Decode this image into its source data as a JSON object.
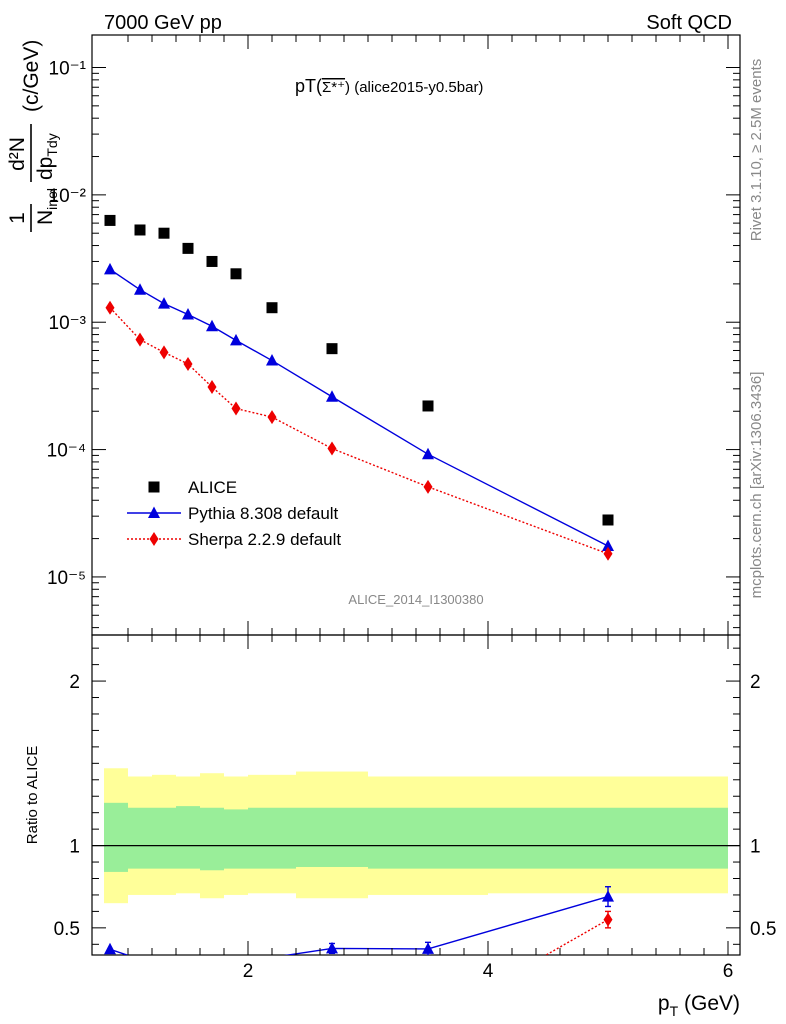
{
  "header": {
    "left": "7000 GeV pp",
    "right": "Soft QCD"
  },
  "side_labels": {
    "rivet": "Rivet 3.1.10, ≥ 2.5M events",
    "mcplots": "mcplots.cern.ch [arXiv:1306.3436]"
  },
  "watermark": "ALICE_2014_I1300380",
  "chart_data": [
    {
      "type": "scatter",
      "panel": "main",
      "title_main": "pT(",
      "title_particle": "Σ*⁺",
      "title_rest": ") (alice2015-y0.5bar)",
      "ylabel": {
        "frac1_num": "1",
        "frac1_den": "N",
        "frac1_den_sub": "inel",
        "frac2_num": "d²N",
        "frac2_den": "dp",
        "frac2_den_sub": "Tdy",
        "unit": "(c/GeV)"
      },
      "yscale": "log",
      "ylim": [
        3.5e-06,
        0.18
      ],
      "xlim": [
        0.7,
        6.1
      ],
      "ytick_labels": [
        "10⁻⁵",
        "10⁻⁴",
        "10⁻³",
        "10⁻²",
        "10⁻¹"
      ],
      "legend_position": "middle-left",
      "series": [
        {
          "name": "ALICE",
          "color": "#000000",
          "marker": "square",
          "line": "none",
          "x": [
            0.85,
            1.1,
            1.3,
            1.5,
            1.7,
            1.9,
            2.2,
            2.7,
            3.5,
            5.0
          ],
          "y": [
            0.0063,
            0.0053,
            0.005,
            0.0038,
            0.003,
            0.0024,
            0.0013,
            0.00062,
            0.00022,
            2.8e-05
          ]
        },
        {
          "name": "Pythia 8.308 default",
          "color": "#0000dd",
          "marker": "triangle",
          "line": "solid",
          "x": [
            0.85,
            1.1,
            1.3,
            1.5,
            1.7,
            1.9,
            2.2,
            2.7,
            3.5,
            5.0
          ],
          "y": [
            0.0026,
            0.0018,
            0.0014,
            0.00115,
            0.00093,
            0.00072,
            0.0005,
            0.00026,
            9.2e-05,
            1.75e-05
          ]
        },
        {
          "name": "Sherpa 2.2.9 default",
          "color": "#ee0000",
          "marker": "diamond",
          "line": "dotted",
          "x": [
            0.85,
            1.1,
            1.3,
            1.5,
            1.7,
            1.9,
            2.2,
            2.7,
            3.5,
            5.0
          ],
          "y": [
            0.0013,
            0.00073,
            0.00058,
            0.00047,
            0.00031,
            0.00021,
            0.00018,
            0.000102,
            5.1e-05,
            1.52e-05
          ]
        }
      ]
    },
    {
      "type": "line",
      "panel": "ratio",
      "ylabel": "Ratio to ALICE",
      "xlabel": "p",
      "xlabel_sub": "T",
      "xlabel_unit": " (GeV)",
      "xlim": [
        0.7,
        6.1
      ],
      "ylim": [
        0.335,
        2.28
      ],
      "xtick_labels": [
        "2",
        "4",
        "6"
      ],
      "ytick_labels": [
        "0.5",
        "1",
        "2"
      ],
      "reference": 1.0,
      "bands": {
        "bin_edges": [
          0.7,
          1.0,
          1.2,
          1.4,
          1.6,
          1.8,
          2.0,
          2.4,
          3.0,
          4.0,
          6.0
        ],
        "stat_color": "#99ee99",
        "total_color": "#ffff99",
        "stat_low": [
          0.84,
          0.86,
          0.86,
          0.86,
          0.85,
          0.86,
          0.86,
          0.87,
          0.86,
          0.86
        ],
        "stat_high": [
          1.26,
          1.23,
          1.23,
          1.24,
          1.23,
          1.22,
          1.23,
          1.23,
          1.23,
          1.23
        ],
        "total_low": [
          0.65,
          0.7,
          0.7,
          0.71,
          0.68,
          0.7,
          0.71,
          0.68,
          0.7,
          0.71
        ],
        "total_high": [
          1.47,
          1.42,
          1.43,
          1.42,
          1.44,
          1.42,
          1.43,
          1.45,
          1.42,
          1.42
        ]
      },
      "series": [
        {
          "name": "Pythia 8.308 default",
          "color": "#0000dd",
          "marker": "triangle",
          "x": [
            0.85,
            2.7,
            3.5,
            5.0
          ],
          "y": [
            0.37,
            0.375,
            0.372,
            0.69
          ],
          "err": [
            0,
            0.03,
            0.04,
            0.06
          ],
          "line_x": [
            0.85,
            1.05,
            2.2,
            2.7,
            3.5,
            5.0
          ],
          "line_y": [
            0.37,
            0.32,
            0.32,
            0.375,
            0.372,
            0.69
          ]
        },
        {
          "name": "Sherpa 2.2.9 default",
          "color": "#ee0000",
          "marker": "diamond",
          "x": [
            5.0
          ],
          "y": [
            0.55
          ],
          "err": [
            0.05
          ],
          "line_x": [
            4.4,
            5.0
          ],
          "line_y": [
            0.3,
            0.55
          ]
        }
      ]
    }
  ]
}
